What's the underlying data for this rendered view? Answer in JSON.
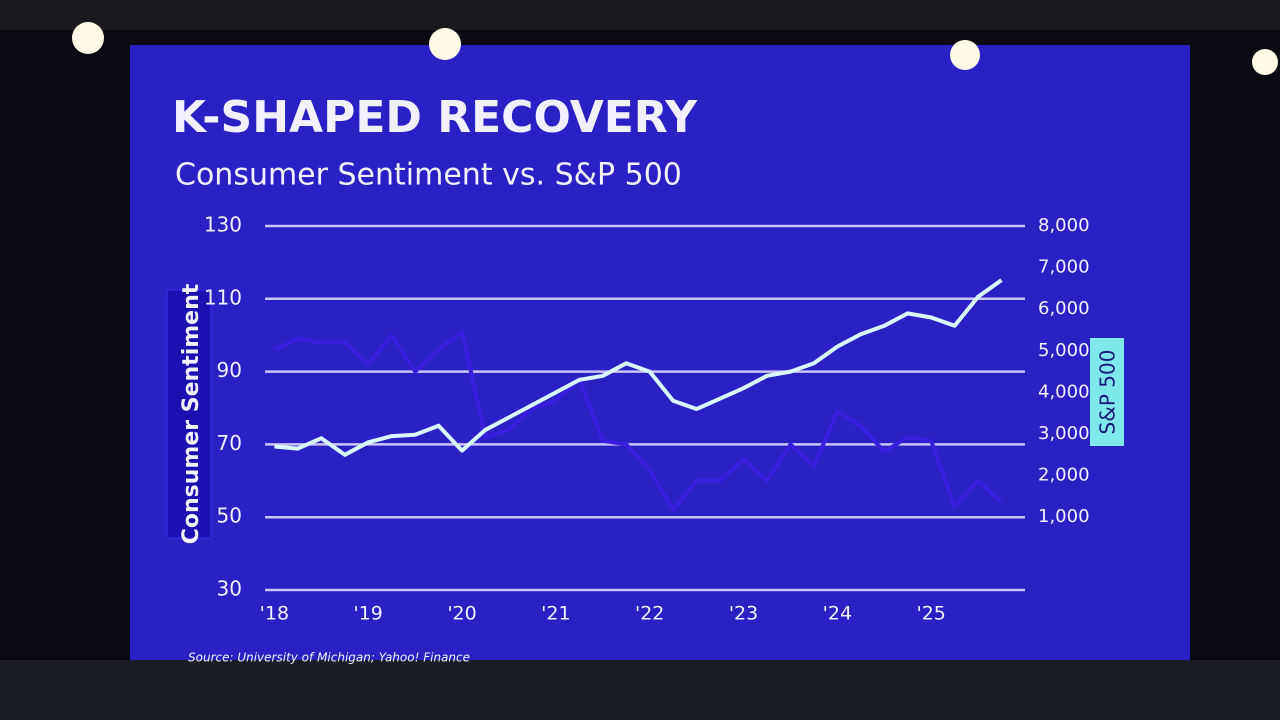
{
  "chart_data": {
    "type": "line",
    "title": "K-SHAPED RECOVERY",
    "subtitle": "Consumer Sentiment vs. S&P 500",
    "y_label": "Consumer Sentiment",
    "y2_label": "S&P 500",
    "source": "Source: University of Michigan; Yahoo! Finance",
    "x": [
      2018.0,
      2018.25,
      2018.5,
      2018.75,
      2019.0,
      2019.25,
      2019.5,
      2019.75,
      2020.0,
      2020.25,
      2020.5,
      2020.75,
      2021.0,
      2021.25,
      2021.5,
      2021.75,
      2022.0,
      2022.25,
      2022.5,
      2022.75,
      2023.0,
      2023.25,
      2023.5,
      2023.75,
      2024.0,
      2024.25,
      2024.5,
      2024.75,
      2025.0,
      2025.25,
      2025.5,
      2025.75
    ],
    "xlim": [
      2017.9,
      2026.0
    ],
    "xticks": [
      {
        "value": 2018,
        "label": "'18"
      },
      {
        "value": 2019,
        "label": "'19"
      },
      {
        "value": 2020,
        "label": "'20"
      },
      {
        "value": 2021,
        "label": "'21"
      },
      {
        "value": 2022,
        "label": "'22"
      },
      {
        "value": 2023,
        "label": "'23"
      },
      {
        "value": 2024,
        "label": "'24"
      },
      {
        "value": 2025,
        "label": "'25"
      }
    ],
    "ylim": [
      30,
      130
    ],
    "yticks": [
      30,
      50,
      70,
      90,
      110,
      130
    ],
    "y2lim": [
      -750,
      8000
    ],
    "y2ticks": [
      {
        "value": 1000,
        "label": "1,000"
      },
      {
        "value": 2000,
        "label": "2,000"
      },
      {
        "value": 3000,
        "label": "3,000"
      },
      {
        "value": 4000,
        "label": "4,000"
      },
      {
        "value": 5000,
        "label": "5,000"
      },
      {
        "value": 6000,
        "label": "6,000"
      },
      {
        "value": 7000,
        "label": "7,000"
      },
      {
        "value": 8000,
        "label": "8,000"
      }
    ],
    "grid": true,
    "series": [
      {
        "name": "Consumer Sentiment",
        "color": "#3a1ee0",
        "axis": "y",
        "values": [
          96,
          99,
          98,
          98,
          92,
          100,
          90,
          96,
          101,
          72,
          74,
          80,
          82,
          88,
          71,
          70,
          63,
          52,
          60,
          60,
          66,
          60,
          70,
          64,
          79,
          75,
          68,
          72,
          71,
          53,
          60,
          54
        ]
      },
      {
        "name": "S&P 500",
        "color": "#d8f8ff",
        "axis": "y2",
        "values": [
          2700,
          2650,
          2900,
          2500,
          2800,
          2950,
          2980,
          3200,
          2600,
          3100,
          3400,
          3700,
          4000,
          4300,
          4400,
          4700,
          4500,
          3800,
          3600,
          3850,
          4100,
          4400,
          4500,
          4700,
          5100,
          5400,
          5600,
          5900,
          5800,
          5600,
          6300,
          6700
        ]
      }
    ]
  }
}
